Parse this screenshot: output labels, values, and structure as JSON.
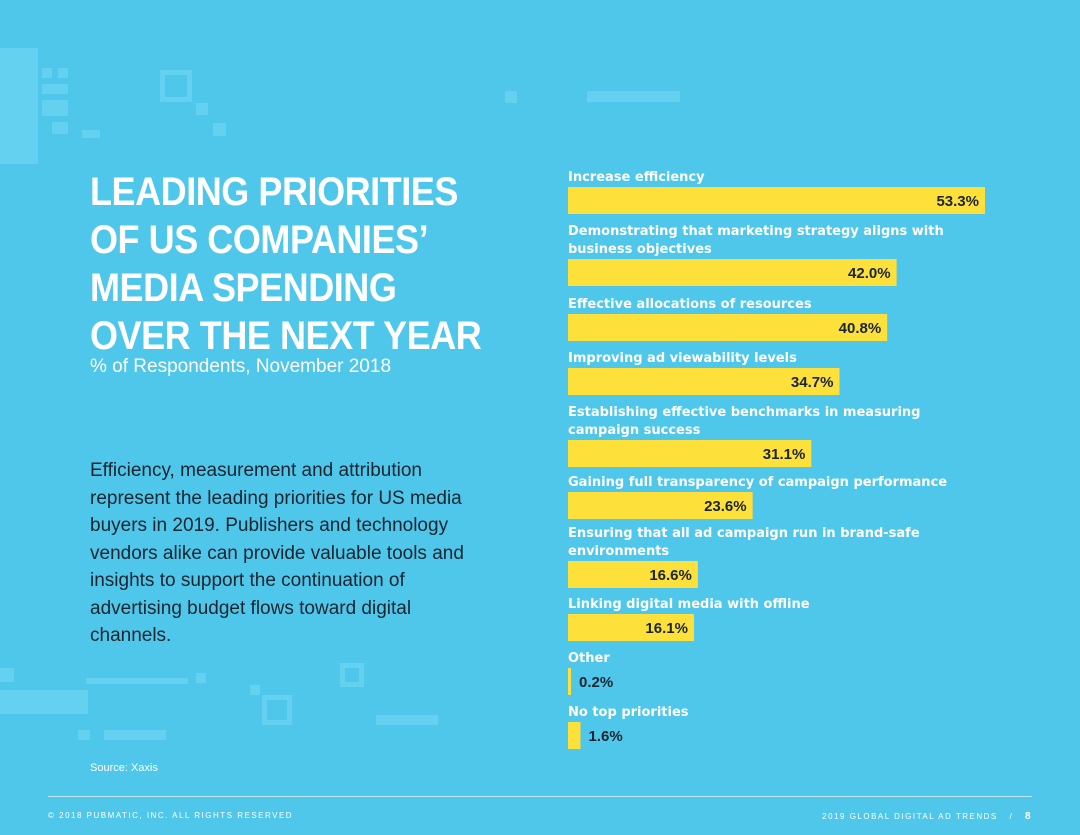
{
  "title": "LEADING PRIORITIES\nOF US COMPANIES’\nMEDIA SPENDING\nOVER THE NEXT YEAR",
  "subtitle": "% of Respondents, November 2018",
  "body_text": "Efficiency, measurement and attribution represent the leading priorities for US media buyers in 2019. Publishers and technology vendors alike can provide valuable tools and insights to support the continuation of advertising budget flows toward digital channels.",
  "source": "Source: Xaxis",
  "footer": {
    "copyright": "© 2018 PUBMATIC, INC. ALL RIGHTS RESERVED",
    "report": "2019 GLOBAL DIGITAL AD TRENDS",
    "separator": "/",
    "page": "8"
  },
  "colors": {
    "background": "#4ec7ea",
    "bar": "#fde03a",
    "value_text": "#1a2530"
  },
  "chart_data": {
    "type": "bar",
    "orientation": "horizontal",
    "categories": [
      "Increase efficiency",
      "Demonstrating that marketing strategy aligns with business objectives",
      "Effective allocations of resources",
      "Improving ad viewability levels",
      "Establishing effective benchmarks in measuring campaign success",
      "Gaining full transparency of campaign performance",
      "Ensuring that all ad campaign run in brand-safe environments",
      "Linking digital media with offline",
      "Other",
      "No top priorities"
    ],
    "values": [
      53.3,
      42.0,
      40.8,
      34.7,
      31.1,
      23.6,
      16.6,
      16.1,
      0.2,
      1.6
    ],
    "value_labels": [
      "53.3%",
      "42.0%",
      "40.8%",
      "34.7%",
      "31.1%",
      "23.6%",
      "16.6%",
      "16.1%",
      "0.2%",
      "1.6%"
    ],
    "xlim": [
      0,
      53.3
    ],
    "grid": false,
    "legend": "none"
  }
}
